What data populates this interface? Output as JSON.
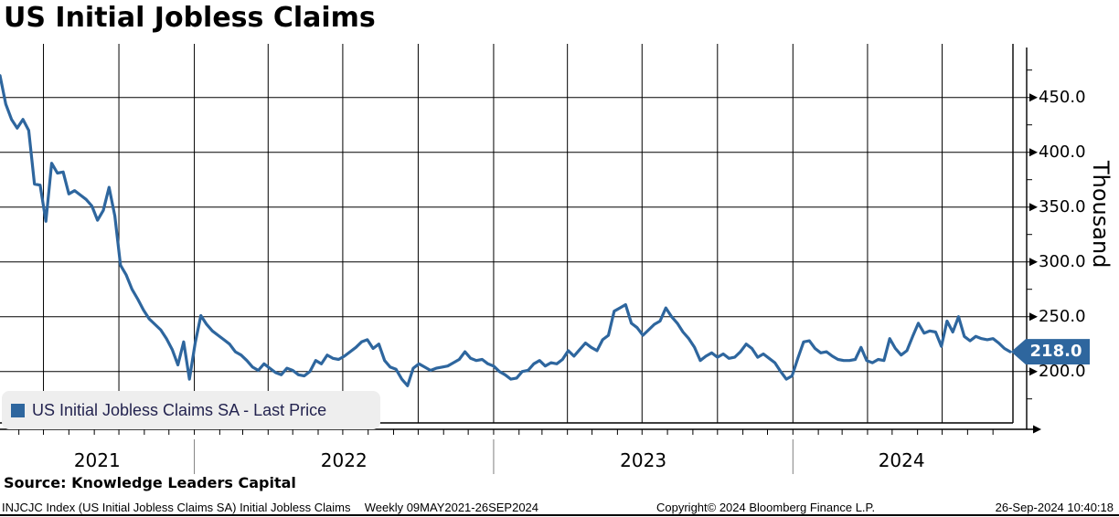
{
  "title": "US Initial Jobless Claims",
  "legend": {
    "label": "US Initial Jobless Claims SA - Last Price"
  },
  "y_axis": {
    "unit": "Thousand"
  },
  "badge": {
    "label": "218.0"
  },
  "source": "Source: Knowledge Leaders Capital",
  "footer": {
    "instrument": "INJCJC Index (US Initial Jobless Claims SA) Initial Jobless Claims",
    "periodicity": "Weekly 09MAY2021-26SEP2024",
    "copyright": "Copyright© 2024 Bloomberg Finance L.P.",
    "timestamp": "26-Sep-2024 10:40:18"
  },
  "chart_data": {
    "type": "line",
    "title": "US Initial Jobless Claims",
    "series_name": "US Initial Jobless Claims SA - Last Price",
    "ylabel": "Thousand",
    "frequency": "Weekly",
    "date_range": "09MAY2021-26SEP2024",
    "start_date": "2021-05-09",
    "end_date": "2024-09-26",
    "last_value": 218.0,
    "line_color": "#2e669e",
    "grid": "on",
    "legend_position": "bottom-left",
    "y_ticks": [
      450,
      400,
      350,
      300,
      250,
      200
    ],
    "y_tick_labels": [
      "450.0",
      "400.0",
      "350.0",
      "300.0",
      "250.0",
      "200.0"
    ],
    "y_minor_step": 25,
    "ylim": [
      153,
      496
    ],
    "x_tick_labels": [
      "2021",
      "2022",
      "2023",
      "2024"
    ],
    "values_unit": "thousands, weekly from 2021-05-09",
    "values": [
      470,
      444,
      430,
      422,
      430,
      420,
      371,
      370,
      337,
      390,
      381,
      382,
      362,
      365,
      361,
      357,
      351,
      338,
      347,
      368,
      342,
      297,
      288,
      275,
      266,
      256,
      248,
      243,
      238,
      230,
      220,
      206,
      227,
      193,
      226,
      251,
      243,
      237,
      233,
      229,
      225,
      218,
      215,
      210,
      204,
      201,
      207,
      203,
      199,
      197,
      203,
      201,
      197,
      196,
      200,
      210,
      207,
      215,
      212,
      211,
      214,
      218,
      222,
      227,
      229,
      221,
      225,
      210,
      204,
      202,
      193,
      187,
      203,
      207,
      204,
      201,
      203,
      204,
      205,
      208,
      211,
      218,
      212,
      210,
      211,
      207,
      205,
      200,
      197,
      193,
      194,
      200,
      201,
      207,
      210,
      205,
      208,
      207,
      211,
      219,
      214,
      220,
      226,
      222,
      219,
      229,
      233,
      255,
      258,
      261,
      244,
      240,
      233,
      238,
      243,
      246,
      258,
      250,
      244,
      236,
      230,
      222,
      210,
      214,
      217,
      213,
      216,
      212,
      213,
      218,
      225,
      221,
      213,
      216,
      212,
      208,
      200,
      193,
      196,
      212,
      227,
      228,
      221,
      217,
      218,
      214,
      211,
      210,
      210,
      211,
      222,
      210,
      208,
      211,
      210,
      230,
      221,
      215,
      219,
      232,
      244,
      235,
      237,
      236,
      223,
      246,
      236,
      250,
      232,
      228,
      232,
      230,
      229,
      230,
      226,
      221,
      218
    ]
  }
}
